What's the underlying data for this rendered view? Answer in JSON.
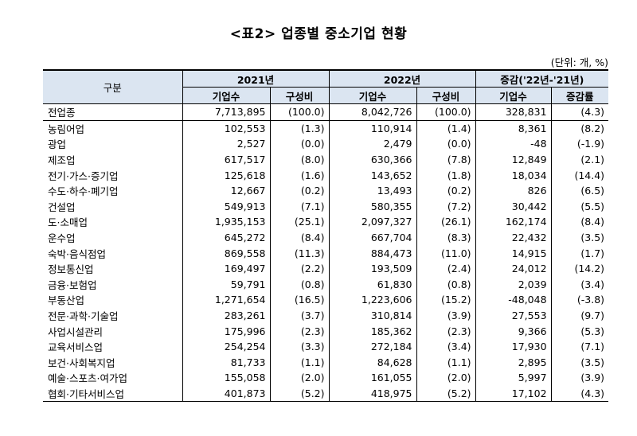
{
  "title": "<표2> 업종별 중소기업 현황",
  "unit_note": "(단위: 개, %)",
  "header": {
    "category": "구분",
    "group_2021": "2021년",
    "group_2022": "2022년",
    "group_change": "증감('22년-'21년)",
    "col_companies": "기업수",
    "col_ratio": "구성비",
    "col_rate": "증감률"
  },
  "rows": [
    {
      "name": "전업종",
      "c21": "7,713,895",
      "r21": "(100.0)",
      "c22": "8,042,726",
      "r22": "(100.0)",
      "dc": "328,831",
      "dr": "(4.3)"
    },
    {
      "name": "농림어업",
      "c21": "102,553",
      "r21": "(1.3)",
      "c22": "110,914",
      "r22": "(1.4)",
      "dc": "8,361",
      "dr": "(8.2)"
    },
    {
      "name": "광업",
      "c21": "2,527",
      "r21": "(0.0)",
      "c22": "2,479",
      "r22": "(0.0)",
      "dc": "-48",
      "dr": "(-1.9)"
    },
    {
      "name": "제조업",
      "c21": "617,517",
      "r21": "(8.0)",
      "c22": "630,366",
      "r22": "(7.8)",
      "dc": "12,849",
      "dr": "(2.1)"
    },
    {
      "name": "전기·가스·증기업",
      "c21": "125,618",
      "r21": "(1.6)",
      "c22": "143,652",
      "r22": "(1.8)",
      "dc": "18,034",
      "dr": "(14.4)"
    },
    {
      "name": "수도·하수·폐기업",
      "c21": "12,667",
      "r21": "(0.2)",
      "c22": "13,493",
      "r22": "(0.2)",
      "dc": "826",
      "dr": "(6.5)"
    },
    {
      "name": "건설업",
      "c21": "549,913",
      "r21": "(7.1)",
      "c22": "580,355",
      "r22": "(7.2)",
      "dc": "30,442",
      "dr": "(5.5)"
    },
    {
      "name": "도·소매업",
      "c21": "1,935,153",
      "r21": "(25.1)",
      "c22": "2,097,327",
      "r22": "(26.1)",
      "dc": "162,174",
      "dr": "(8.4)"
    },
    {
      "name": "운수업",
      "c21": "645,272",
      "r21": "(8.4)",
      "c22": "667,704",
      "r22": "(8.3)",
      "dc": "22,432",
      "dr": "(3.5)"
    },
    {
      "name": "숙박·음식점업",
      "c21": "869,558",
      "r21": "(11.3)",
      "c22": "884,473",
      "r22": "(11.0)",
      "dc": "14,915",
      "dr": "(1.7)"
    },
    {
      "name": "정보통신업",
      "c21": "169,497",
      "r21": "(2.2)",
      "c22": "193,509",
      "r22": "(2.4)",
      "dc": "24,012",
      "dr": "(14.2)"
    },
    {
      "name": "금융·보험업",
      "c21": "59,791",
      "r21": "(0.8)",
      "c22": "61,830",
      "r22": "(0.8)",
      "dc": "2,039",
      "dr": "(3.4)"
    },
    {
      "name": "부동산업",
      "c21": "1,271,654",
      "r21": "(16.5)",
      "c22": "1,223,606",
      "r22": "(15.2)",
      "dc": "-48,048",
      "dr": "(-3.8)"
    },
    {
      "name": "전문·과학·기술업",
      "c21": "283,261",
      "r21": "(3.7)",
      "c22": "310,814",
      "r22": "(3.9)",
      "dc": "27,553",
      "dr": "(9.7)"
    },
    {
      "name": "사업시설관리",
      "c21": "175,996",
      "r21": "(2.3)",
      "c22": "185,362",
      "r22": "(2.3)",
      "dc": "9,366",
      "dr": "(5.3)"
    },
    {
      "name": "교육서비스업",
      "c21": "254,254",
      "r21": "(3.3)",
      "c22": "272,184",
      "r22": "(3.4)",
      "dc": "17,930",
      "dr": "(7.1)"
    },
    {
      "name": "보건·사회복지업",
      "c21": "81,733",
      "r21": "(1.1)",
      "c22": "84,628",
      "r22": "(1.1)",
      "dc": "2,895",
      "dr": "(3.5)"
    },
    {
      "name": "예술·스포츠·여가업",
      "c21": "155,058",
      "r21": "(2.0)",
      "c22": "161,055",
      "r22": "(2.0)",
      "dc": "5,997",
      "dr": "(3.9)"
    },
    {
      "name": "협회·기타서비스업",
      "c21": "401,873",
      "r21": "(5.2)",
      "c22": "418,975",
      "r22": "(5.2)",
      "dc": "17,102",
      "dr": "(4.3)"
    }
  ]
}
